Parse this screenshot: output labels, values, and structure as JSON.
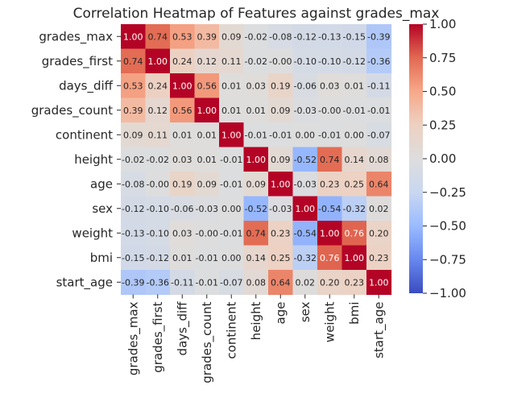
{
  "chart_data": {
    "type": "heatmap",
    "title": "Correlation Heatmap of Features against grades_max",
    "features": [
      "grades_max",
      "grades_first",
      "days_diff",
      "grades_count",
      "continent",
      "height",
      "age",
      "sex",
      "weight",
      "bmi",
      "start_age"
    ],
    "values": [
      [
        1.0,
        0.74,
        0.53,
        0.39,
        0.09,
        -0.02,
        -0.08,
        -0.12,
        -0.13,
        -0.15,
        -0.39
      ],
      [
        0.74,
        1.0,
        0.24,
        0.12,
        0.11,
        -0.02,
        -0.0,
        -0.1,
        -0.1,
        -0.12,
        -0.36
      ],
      [
        0.53,
        0.24,
        1.0,
        0.56,
        0.01,
        0.03,
        0.19,
        -0.06,
        0.03,
        0.01,
        -0.11
      ],
      [
        0.39,
        0.12,
        0.56,
        1.0,
        0.01,
        0.01,
        0.09,
        -0.03,
        -0.0,
        -0.01,
        -0.01
      ],
      [
        0.09,
        0.11,
        0.01,
        0.01,
        1.0,
        -0.01,
        -0.01,
        0.0,
        -0.01,
        0.0,
        -0.07
      ],
      [
        -0.02,
        -0.02,
        0.03,
        0.01,
        -0.01,
        1.0,
        0.09,
        -0.52,
        0.74,
        0.14,
        0.08
      ],
      [
        -0.08,
        -0.0,
        0.19,
        0.09,
        -0.01,
        0.09,
        1.0,
        -0.03,
        0.23,
        0.25,
        0.64
      ],
      [
        -0.12,
        -0.1,
        -0.06,
        -0.03,
        0.0,
        -0.52,
        -0.03,
        1.0,
        -0.54,
        -0.32,
        0.02
      ],
      [
        -0.13,
        -0.1,
        0.03,
        -0.0,
        -0.01,
        0.74,
        0.23,
        -0.54,
        1.0,
        0.76,
        0.2
      ],
      [
        -0.15,
        -0.12,
        0.01,
        -0.01,
        0.0,
        0.14,
        0.25,
        -0.32,
        0.76,
        1.0,
        0.23
      ],
      [
        -0.39,
        -0.36,
        -0.11,
        -0.01,
        -0.07,
        0.08,
        0.64,
        0.02,
        0.2,
        0.23,
        1.0
      ]
    ],
    "cell_labels": [
      [
        "1.00",
        "0.74",
        "0.53",
        "0.39",
        "0.09",
        "-0.02",
        "-0.08",
        "-0.12",
        "-0.13",
        "-0.15",
        "-0.39"
      ],
      [
        "0.74",
        "1.00",
        "0.24",
        "0.12",
        "0.11",
        "-0.02",
        "-0.00",
        "-0.10",
        "-0.10",
        "-0.12",
        "-0.36"
      ],
      [
        "0.53",
        "0.24",
        "1.00",
        "0.56",
        "0.01",
        "0.03",
        "0.19",
        "-0.06",
        "0.03",
        "0.01",
        "-0.11"
      ],
      [
        "0.39",
        "0.12",
        "0.56",
        "1.00",
        "0.01",
        "0.01",
        "0.09",
        "-0.03",
        "-0.00",
        "-0.01",
        "-0.01"
      ],
      [
        "0.09",
        "0.11",
        "0.01",
        "0.01",
        "1.00",
        "-0.01",
        "-0.01",
        "0.00",
        "-0.01",
        "0.00",
        "-0.07"
      ],
      [
        "-0.02",
        "-0.02",
        "0.03",
        "0.01",
        "-0.01",
        "1.00",
        "0.09",
        "-0.52",
        "0.74",
        "0.14",
        "0.08"
      ],
      [
        "-0.08",
        "-0.00",
        "0.19",
        "0.09",
        "-0.01",
        "0.09",
        "1.00",
        "-0.03",
        "0.23",
        "0.25",
        "0.64"
      ],
      [
        "-0.12",
        "-0.10",
        "-0.06",
        "-0.03",
        "0.00",
        "-0.52",
        "-0.03",
        "1.00",
        "-0.54",
        "-0.32",
        "0.02"
      ],
      [
        "-0.13",
        "-0.10",
        "0.03",
        "-0.00",
        "-0.01",
        "0.74",
        "0.23",
        "-0.54",
        "1.00",
        "0.76",
        "0.20"
      ],
      [
        "-0.15",
        "-0.12",
        "0.01",
        "-0.01",
        "0.00",
        "0.14",
        "0.25",
        "-0.32",
        "0.76",
        "1.00",
        "0.23"
      ],
      [
        "-0.39",
        "-0.36",
        "-0.11",
        "-0.01",
        "-0.07",
        "0.08",
        "0.64",
        "0.02",
        "0.20",
        "0.23",
        "1.00"
      ]
    ],
    "colormap": "coolwarm",
    "vmin": -1.0,
    "vmax": 1.0,
    "colorbar_ticks": [
      1.0,
      0.75,
      0.5,
      0.25,
      0.0,
      -0.25,
      -0.5,
      -0.75,
      -1.0
    ],
    "colorbar_tick_labels": [
      "1.00",
      "0.75",
      "0.50",
      "0.25",
      "0.00",
      "−0.25",
      "−0.50",
      "−0.75",
      "−1.00"
    ],
    "colormap_stops": [
      "#3b4cc0",
      "#6788ee",
      "#9abbff",
      "#c9d7f0",
      "#dddddd",
      "#edd1c2",
      "#f7a889",
      "#e26952",
      "#b40426"
    ]
  }
}
